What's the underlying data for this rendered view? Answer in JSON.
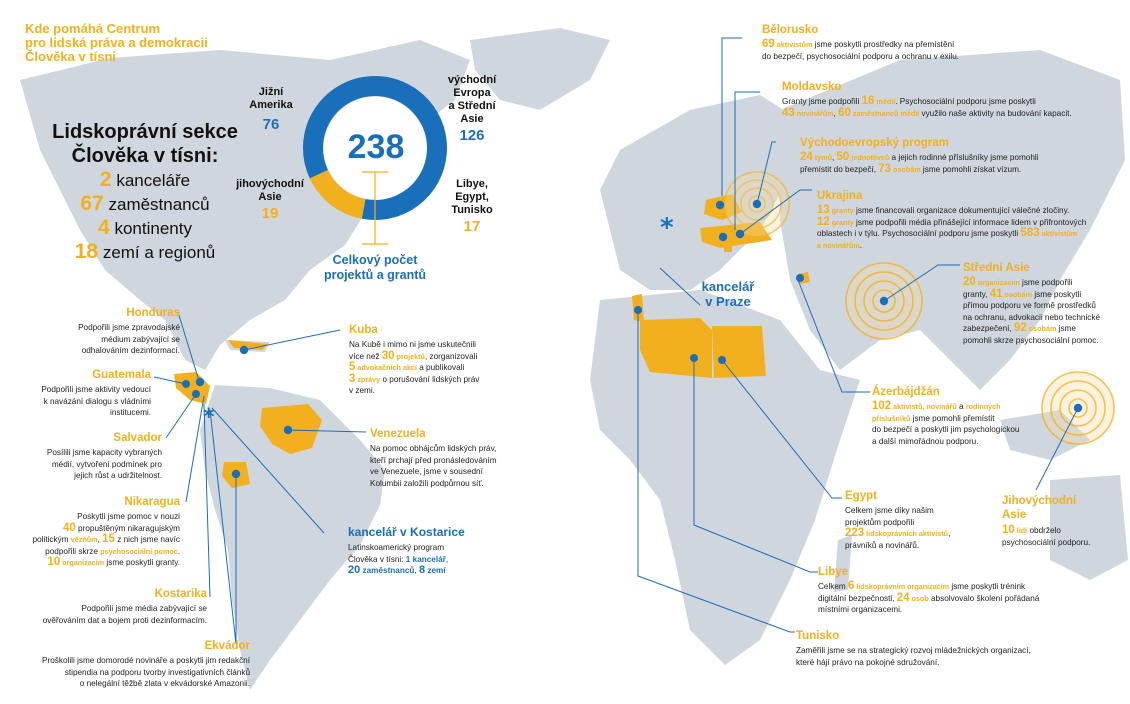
{
  "header": {
    "title_lines": [
      "Kde pomáhá Centrum",
      "pro lidská práva a demokracii",
      "Člověka v tísni"
    ]
  },
  "section": {
    "title_lines": [
      "Lidskoprávní sekce",
      "Člověka v tísni:"
    ],
    "stats": [
      {
        "num": "2",
        "label": "kanceláře"
      },
      {
        "num": "67",
        "label": "zaměstnanců"
      },
      {
        "num": "4",
        "label": "kontinenty"
      },
      {
        "num": "18",
        "label": "zemí a regionů"
      }
    ]
  },
  "donut": {
    "total": "238",
    "caption_lines": [
      "Celkový počet",
      "projektů a grantů"
    ],
    "colors": {
      "blue": "#1a6fbb",
      "yellow": "#f2b01e"
    }
  },
  "chart_data": {
    "type": "pie",
    "title": "Celkový počet projektů a grantů",
    "total": 238,
    "slices": [
      {
        "label": "východní Evropa a Střední Asie",
        "value": 126
      },
      {
        "label": "Libye, Egypt, Tunisko",
        "value": 17
      },
      {
        "label": "jihovýchodní Asie",
        "value": 19
      },
      {
        "label": "Jižní Amerika",
        "value": 76
      }
    ]
  },
  "regions": {
    "south_america": {
      "label_lines": [
        "Jižní",
        "Amerika"
      ],
      "value": "76"
    },
    "se_asia": {
      "label_lines": [
        "jihovýchodní",
        "Asie"
      ],
      "value": "19"
    },
    "east_europe": {
      "label_lines": [
        "východní",
        "Evropa",
        "a Střední",
        "Asie"
      ],
      "value": "126"
    },
    "north_africa": {
      "label_lines": [
        "Libye,",
        "Egypt,",
        "Tunisko"
      ],
      "value": "17"
    }
  },
  "offices": {
    "prague": {
      "label_lines": [
        "kancelář",
        "v Praze"
      ]
    },
    "costa_rica": {
      "title": "kancelář v Kostarice",
      "l1": "Latinskoamerický program",
      "l2a": "Člověka v tísni: ",
      "n1": "1",
      "w1": "kancelář",
      "n2": "20",
      "w2": "zaměstnanců",
      "n3": "8",
      "w3": "zemí"
    }
  },
  "countries": {
    "honduras": {
      "title": "Honduras",
      "lines": [
        "Podpořili jsme zpravodajské",
        "médium zabývající se",
        "odhalováním dezinformací."
      ]
    },
    "guatemala": {
      "title": "Guatemala",
      "lines": [
        "Podpořili jsme aktivity vedoucí",
        "k navázání dialogu s vládními",
        "institucemi."
      ]
    },
    "salvador": {
      "title": "Salvador",
      "lines": [
        "Posílili jsme kapacity vybraných",
        "médií, vytvoření podmínek pro",
        "jejich růst a udržitelnost."
      ]
    },
    "nikaragua": {
      "title": "Nikaragua",
      "l1": "Poskytli jsme pomoc v nouzi",
      "l2n": "40",
      "l2": " propuštěným nikaragujským",
      "l3a": "politickým ",
      "l3y": "vězňům",
      "l3b": ", ",
      "l3n": "15",
      "l3c": " z nich jsme navíc",
      "l4a": "podpořili skrze ",
      "l4y": "psychosociální pomoc",
      "l5n": "10",
      "l5y": " organizacím",
      "l5": " jsme poskytli granty."
    },
    "kostarika": {
      "title": "Kostarika",
      "lines": [
        "Podpořili jsme média zabývající se",
        "ověřováním dat a bojem proti dezinformacím."
      ]
    },
    "ekvador": {
      "title": "Ekvádor",
      "lines": [
        "Proškolili jsme domorodé novináře a poskytli jim redakční",
        "stipendia na podporu tvorby investigativních článků",
        "o nelegální těžbě zlata v ekvádorské Amazonii."
      ]
    },
    "kuba": {
      "title": "Kuba",
      "l1": "Na Kubě i mimo ni jsme uskutečnili",
      "l2a": "více než ",
      "l2n": "30",
      "l2y": " projektů",
      "l2b": ", zorganizovali",
      "l3n": "5",
      "l3y": " advokačních akcí",
      "l3b": " a publikovali",
      "l4n": "3",
      "l4y": " zprávy",
      "l4b": " o porušování lidských práv",
      "l5": "v zemi."
    },
    "venezuela": {
      "title": "Venezuela",
      "lines": [
        "Na pomoc obhájcům lidských práv,",
        "kteří prchají před pronásledováním",
        "ve Venezuele, jsme v sousední",
        "Kolumbii založili podpůrnou síť."
      ]
    },
    "belorusko": {
      "title": "Bělorusko",
      "n1": "69",
      "y1": " aktivistům",
      "t1": " jsme poskytli prostředky na přemístění",
      "t2": "do bezpečí, psychosociální podporu a ochranu v exilu."
    },
    "moldavsko": {
      "title": "Moldavsko",
      "t1a": "Granty jsme podpořili ",
      "n1": "16",
      "y1": " médií",
      "t1b": ". Psychosociální podporu jsme poskytli",
      "n2": "43",
      "y2": " novinářům",
      "t2a": ", ",
      "n3": "60",
      "y3": " zaměstnanců médií",
      "t2b": " využilo naše aktivity na budování kapacit."
    },
    "vychodoevropsky": {
      "title": "Východoevropský program",
      "n1": "24",
      "y1": " týmů",
      "t1": ", ",
      "n2": "50",
      "y2": " jednotlivců",
      "t2": " a jejich rodinné příslušníky jsme pomohli",
      "t3": "přemístit do bezpečí, ",
      "n3": "73",
      "y3": " osobám",
      "t4": " jsme pomohli získat vízum."
    },
    "ukrajina": {
      "title": "Ukrajina",
      "n1": "13",
      "y1": " granty",
      "t1": " jsme financovali organizace dokumentující válečné zločiny.",
      "n2": "12",
      "y2": " granty",
      "t2": " jsme podpořili média přinášející informace lidem v přifrontových",
      "t3": "oblastech i v týlu. Psychosociální podporu jsme poskytli ",
      "n3": "583",
      "y3": " aktivistům",
      "y4": "a novinářům",
      "t4": "."
    },
    "stredni_asie": {
      "title": "Střední Asie",
      "n1": "20",
      "y1": " organizacím",
      "t1": " jsme podpořili",
      "t2a": "granty, ",
      "n2": "41",
      "y2": " osobám",
      "t2b": " jsme poskytli",
      "t3": "přímou podporu ve formě prostředků",
      "t4": "na ochranu, advokacii nebo technické",
      "t5": "zabezpečení, ",
      "n3": "92",
      "y3": " osobám",
      "t5b": " jsme",
      "t6": "pomohli skrze psychosociální pomoc."
    },
    "azerbajdzan": {
      "title": "Ázerbájdžán",
      "n1": "102",
      "y1": " aktivistů, novinářů",
      "t1": " a ",
      "y2": "rodinných",
      "y3": "příslušníků",
      "t2": " jsme pomohli přemístit",
      "t3": "do bezpečí a poskytli jim psychologickou",
      "t4": "a další mimořádnou podporu."
    },
    "egypt": {
      "title": "Egypt",
      "t1": "Celkem jsme díky našim",
      "t2": "projektům podpořili",
      "n1": "223",
      "y1": " lidskoprávních aktivistů",
      "t3": ",",
      "t4": "právníků a novinářů."
    },
    "libye": {
      "title": "Libye",
      "t1a": "Celkem ",
      "n1": "6",
      "y1": " lidskoprávním organizacím",
      "t1b": " jsme poskytli trénink",
      "t2a": "digitální bezpečnosti, ",
      "n2": "24",
      "y2": " osob",
      "t2b": " absolvovalo školení pořádaná",
      "t3": "místními organizacemi."
    },
    "tunisko": {
      "title": "Tunisko",
      "lines": [
        "Zaměřili jsme se na strategický rozvoj mládežnických organizací,",
        "které hájí právo na pokojné sdružování."
      ]
    },
    "jv_asie": {
      "title_lines": [
        "Jihovýchodní",
        "Asie"
      ],
      "n1": "10",
      "y1": " lidí",
      "t1": " obdrželo",
      "t2": "psychosociální podporu."
    }
  },
  "colors": {
    "accent_yellow": "#f2b01e",
    "accent_blue": "#1a6fbb",
    "land": "#cfd6dd"
  }
}
